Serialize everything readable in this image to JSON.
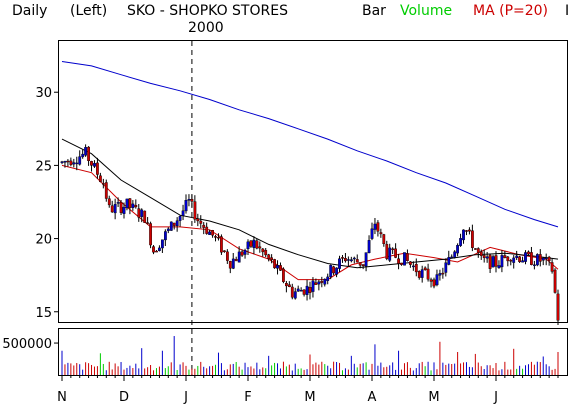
{
  "header": {
    "period": "Daily",
    "scale": "(Left)",
    "title": "SKO - SHOPKO STORES",
    "year_label": "2000",
    "legend_bar": "Bar",
    "legend_volume": "Volume",
    "legend_ma": "MA (P=20)",
    "truncated_text": "I"
  },
  "colors": {
    "up_bar": "#0000cc",
    "down_bar": "#cc0000",
    "ma_red": "#cc0000",
    "ma_black": "#000000",
    "ma_blue": "#0000cc",
    "volume_green": "#00cc00"
  },
  "chart_data": [
    {
      "type": "candlestick",
      "title": "SKO - SHOPKO STORES",
      "ylim": [
        14.3,
        33.5
      ],
      "y_ticks": [
        "15",
        "20",
        "25",
        "30"
      ],
      "y_tick_values": [
        15,
        20,
        25,
        30
      ],
      "x_ticks": [
        "N",
        "D",
        "J",
        "F",
        "M",
        "A",
        "M",
        "J"
      ],
      "x_tick_days": [
        0,
        21,
        42,
        63,
        84,
        105,
        126,
        147
      ],
      "x_range_days": [
        0,
        168
      ],
      "year_marker_day": 44,
      "series": [
        {
          "name": "Bar",
          "key_prices": [
            [
              0,
              25.2
            ],
            [
              8,
              25.8
            ],
            [
              14,
              23.8
            ],
            [
              16,
              22.0
            ],
            [
              22,
              22.3
            ],
            [
              28,
              21.5
            ],
            [
              31,
              19.2
            ],
            [
              40,
              21.6
            ],
            [
              43,
              22.5
            ],
            [
              46,
              21.3
            ],
            [
              52,
              20.0
            ],
            [
              57,
              18.4
            ],
            [
              65,
              19.7
            ],
            [
              72,
              18.1
            ],
            [
              78,
              16.3
            ],
            [
              83,
              16.6
            ],
            [
              90,
              17.6
            ],
            [
              96,
              18.7
            ],
            [
              102,
              18.3
            ],
            [
              106,
              21.1
            ],
            [
              110,
              19.0
            ],
            [
              116,
              18.6
            ],
            [
              120,
              17.9
            ],
            [
              124,
              17.4
            ],
            [
              127,
              17.1
            ],
            [
              132,
              18.8
            ],
            [
              136,
              20.9
            ],
            [
              142,
              18.5
            ],
            [
              147,
              18.3
            ],
            [
              152,
              18.9
            ],
            [
              158,
              18.6
            ],
            [
              163,
              18.5
            ],
            [
              166,
              17.9
            ],
            [
              168,
              14.6
            ]
          ]
        },
        {
          "name": "MA (P=20)",
          "values": [
            [
              0,
              25.0
            ],
            [
              10,
              24.5
            ],
            [
              20,
              22.5
            ],
            [
              30,
              20.8
            ],
            [
              40,
              20.8
            ],
            [
              50,
              20.6
            ],
            [
              60,
              19.3
            ],
            [
              70,
              18.6
            ],
            [
              80,
              17.2
            ],
            [
              90,
              17.2
            ],
            [
              98,
              18.2
            ],
            [
              106,
              18.6
            ],
            [
              116,
              19.0
            ],
            [
              126,
              18.7
            ],
            [
              134,
              18.4
            ],
            [
              145,
              19.4
            ],
            [
              155,
              18.9
            ],
            [
              164,
              18.6
            ],
            [
              168,
              17.9
            ]
          ]
        },
        {
          "name": "MA (black)",
          "values": [
            [
              0,
              26.8
            ],
            [
              10,
              25.8
            ],
            [
              20,
              24.0
            ],
            [
              30,
              22.8
            ],
            [
              40,
              21.6
            ],
            [
              50,
              21.2
            ],
            [
              60,
              20.6
            ],
            [
              70,
              19.6
            ],
            [
              80,
              18.9
            ],
            [
              90,
              18.3
            ],
            [
              100,
              18.0
            ],
            [
              110,
              18.2
            ],
            [
              120,
              18.4
            ],
            [
              130,
              18.6
            ],
            [
              140,
              18.9
            ],
            [
              150,
              19.0
            ],
            [
              160,
              18.8
            ],
            [
              168,
              18.6
            ]
          ]
        },
        {
          "name": "MA (blue)",
          "values": [
            [
              0,
              32.1
            ],
            [
              10,
              31.8
            ],
            [
              20,
              31.2
            ],
            [
              30,
              30.6
            ],
            [
              40,
              30.1
            ],
            [
              50,
              29.5
            ],
            [
              60,
              28.8
            ],
            [
              70,
              28.2
            ],
            [
              80,
              27.5
            ],
            [
              90,
              26.8
            ],
            [
              100,
              26.0
            ],
            [
              110,
              25.3
            ],
            [
              120,
              24.5
            ],
            [
              130,
              23.8
            ],
            [
              140,
              22.9
            ],
            [
              150,
              22.0
            ],
            [
              160,
              21.3
            ],
            [
              168,
              20.8
            ]
          ]
        }
      ]
    },
    {
      "type": "bar",
      "name": "Volume",
      "y_ticks": [
        "500000"
      ],
      "y_tick_values": [
        500000
      ],
      "ylim": [
        0,
        720000
      ],
      "spikes": [
        [
          0,
          380000
        ],
        [
          13,
          340000
        ],
        [
          27,
          420000
        ],
        [
          34,
          380000
        ],
        [
          38,
          610000
        ],
        [
          53,
          350000
        ],
        [
          70,
          300000
        ],
        [
          84,
          320000
        ],
        [
          98,
          300000
        ],
        [
          106,
          480000
        ],
        [
          114,
          380000
        ],
        [
          128,
          520000
        ],
        [
          134,
          360000
        ],
        [
          140,
          330000
        ],
        [
          153,
          410000
        ],
        [
          163,
          290000
        ],
        [
          168,
          360000
        ]
      ]
    }
  ]
}
